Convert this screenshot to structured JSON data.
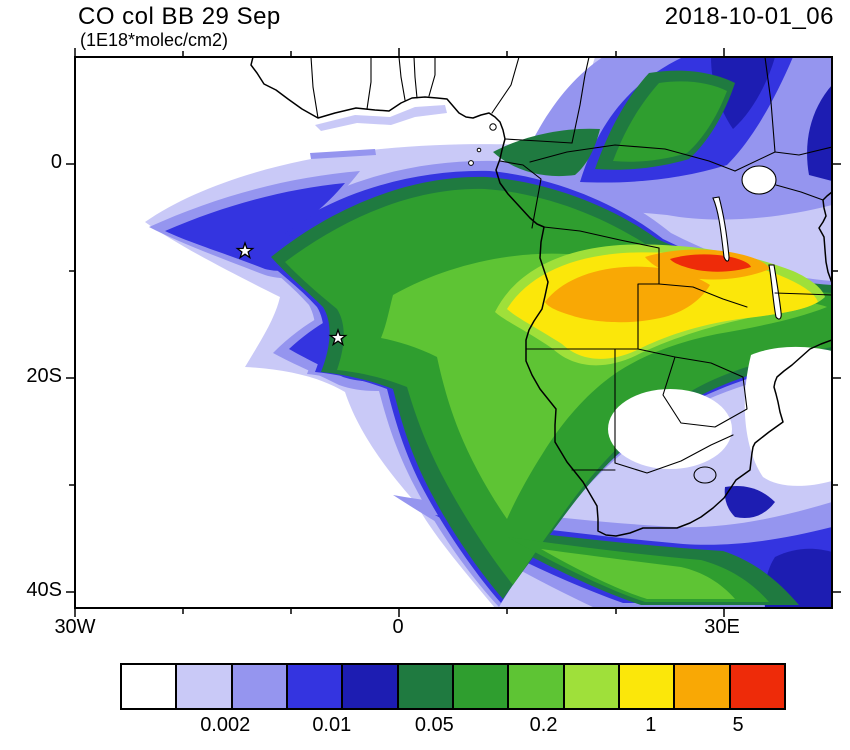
{
  "header": {
    "title": "CO col BB 29 Sep",
    "subtitle": "(1E18*molec/cm2)",
    "date": "2018-10-01_06"
  },
  "chart_data": {
    "type": "heatmap",
    "subtype": "filled contour lat-lon map",
    "title": "CO col BB 29 Sep",
    "units": "1E18*molec/cm2",
    "valid_time": "2018-10-01_06",
    "x_axis": {
      "tick_labels": [
        "30W",
        "0",
        "30E"
      ],
      "lon_range_deg": [
        -30,
        40
      ],
      "minor_tick_interval_deg": 10
    },
    "y_axis": {
      "tick_labels": [
        "0",
        "20S",
        "40S"
      ],
      "lat_range_deg": [
        -41.5,
        10
      ],
      "minor_tick_interval_deg": 10
    },
    "colorbar": {
      "colors": [
        "#ffffff",
        "#c9c9f7",
        "#9595ef",
        "#3434e0",
        "#1d1db2",
        "#1f7a40",
        "#2f9e2f",
        "#5ec434",
        "#9fe03a",
        "#fbe70a",
        "#f9a805",
        "#ee2b09"
      ],
      "labels": [
        "0.002",
        "0.01",
        "0.05",
        "0.2",
        "1",
        "5"
      ]
    },
    "markers": [
      {
        "symbol": "star",
        "lon_deg": -14.3,
        "lat_deg": -8.1
      },
      {
        "symbol": "star",
        "lon_deg": -5.7,
        "lat_deg": -16.3
      }
    ],
    "map_features": [
      "Africa coastline",
      "country borders",
      "Lake Victoria",
      "Lake Tanganyika",
      "Lake Malawi"
    ],
    "field_summary": "Biomass-burning CO column maximum (orange-red core, ~5e18 molec/cm2) over southern DRC / NE Angola / Zambia; yellow 1-5e18 region across Angola-Zambia; green 0.2-1e18 over central-southern Africa and the eastern tropical Atlantic; blue-violet plume tongues extending west over the South Atlantic to ~22W, over NE Africa, and southeast across South Africa to the bottom-right of the domain"
  }
}
